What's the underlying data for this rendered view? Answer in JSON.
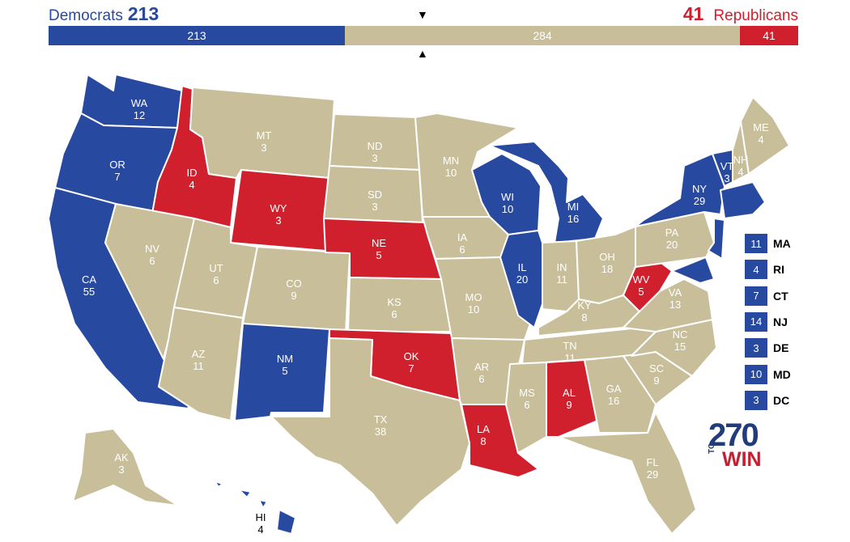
{
  "header": {
    "dem_label": "Democrats",
    "dem_total": "213",
    "rep_total": "41",
    "rep_label": "Republicans",
    "arrow_down": "▼",
    "arrow_up": "▲"
  },
  "bar": {
    "dem": "213",
    "tossup": "284",
    "rep": "41"
  },
  "colors": {
    "dem": "#2849a0",
    "tossup": "#c8be9a",
    "rep": "#d0202d"
  },
  "states": [
    {
      "abbr": "WA",
      "ev": "12",
      "party": "dem"
    },
    {
      "abbr": "OR",
      "ev": "7",
      "party": "dem"
    },
    {
      "abbr": "CA",
      "ev": "55",
      "party": "dem"
    },
    {
      "abbr": "ID",
      "ev": "4",
      "party": "rep"
    },
    {
      "abbr": "NV",
      "ev": "6",
      "party": "tossup"
    },
    {
      "abbr": "MT",
      "ev": "3",
      "party": "tossup"
    },
    {
      "abbr": "WY",
      "ev": "3",
      "party": "rep"
    },
    {
      "abbr": "UT",
      "ev": "6",
      "party": "tossup"
    },
    {
      "abbr": "AZ",
      "ev": "11",
      "party": "tossup"
    },
    {
      "abbr": "CO",
      "ev": "9",
      "party": "tossup"
    },
    {
      "abbr": "NM",
      "ev": "5",
      "party": "dem"
    },
    {
      "abbr": "ND",
      "ev": "3",
      "party": "tossup"
    },
    {
      "abbr": "SD",
      "ev": "3",
      "party": "tossup"
    },
    {
      "abbr": "NE",
      "ev": "5",
      "party": "rep"
    },
    {
      "abbr": "KS",
      "ev": "6",
      "party": "tossup"
    },
    {
      "abbr": "OK",
      "ev": "7",
      "party": "rep"
    },
    {
      "abbr": "TX",
      "ev": "38",
      "party": "tossup"
    },
    {
      "abbr": "MN",
      "ev": "10",
      "party": "tossup"
    },
    {
      "abbr": "IA",
      "ev": "6",
      "party": "tossup"
    },
    {
      "abbr": "MO",
      "ev": "10",
      "party": "tossup"
    },
    {
      "abbr": "AR",
      "ev": "6",
      "party": "tossup"
    },
    {
      "abbr": "LA",
      "ev": "8",
      "party": "rep"
    },
    {
      "abbr": "WI",
      "ev": "10",
      "party": "dem"
    },
    {
      "abbr": "IL",
      "ev": "20",
      "party": "dem"
    },
    {
      "abbr": "MI",
      "ev": "16",
      "party": "dem"
    },
    {
      "abbr": "IN",
      "ev": "11",
      "party": "tossup"
    },
    {
      "abbr": "OH",
      "ev": "18",
      "party": "tossup"
    },
    {
      "abbr": "KY",
      "ev": "8",
      "party": "tossup"
    },
    {
      "abbr": "TN",
      "ev": "11",
      "party": "tossup"
    },
    {
      "abbr": "MS",
      "ev": "6",
      "party": "tossup"
    },
    {
      "abbr": "AL",
      "ev": "9",
      "party": "rep"
    },
    {
      "abbr": "GA",
      "ev": "16",
      "party": "tossup"
    },
    {
      "abbr": "FL",
      "ev": "29",
      "party": "tossup"
    },
    {
      "abbr": "SC",
      "ev": "9",
      "party": "tossup"
    },
    {
      "abbr": "NC",
      "ev": "15",
      "party": "tossup"
    },
    {
      "abbr": "VA",
      "ev": "13",
      "party": "tossup"
    },
    {
      "abbr": "WV",
      "ev": "5",
      "party": "rep"
    },
    {
      "abbr": "PA",
      "ev": "20",
      "party": "tossup"
    },
    {
      "abbr": "NY",
      "ev": "29",
      "party": "dem"
    },
    {
      "abbr": "VT",
      "ev": "3",
      "party": "dem"
    },
    {
      "abbr": "NH",
      "ev": "4",
      "party": "tossup"
    },
    {
      "abbr": "ME",
      "ev": "4",
      "party": "tossup"
    },
    {
      "abbr": "AK",
      "ev": "3",
      "party": "tossup"
    },
    {
      "abbr": "HI",
      "ev": "4",
      "party": "dem"
    }
  ],
  "small_states": [
    {
      "abbr": "MA",
      "ev": "11"
    },
    {
      "abbr": "RI",
      "ev": "4"
    },
    {
      "abbr": "CT",
      "ev": "7"
    },
    {
      "abbr": "NJ",
      "ev": "14"
    },
    {
      "abbr": "DE",
      "ev": "3"
    },
    {
      "abbr": "MD",
      "ev": "10"
    },
    {
      "abbr": "DC",
      "ev": "3"
    }
  ],
  "logo": {
    "number": "270",
    "to": "TO",
    "win": "WIN"
  }
}
